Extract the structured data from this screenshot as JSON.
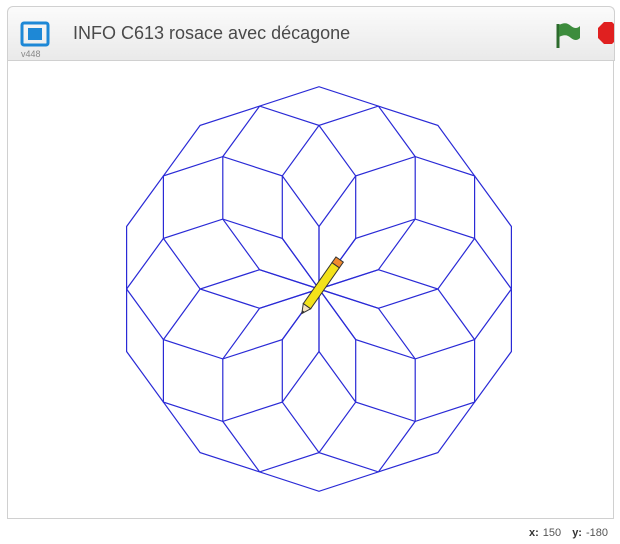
{
  "header": {
    "version": "v448",
    "title": "INFO C613 rosace avec décagone"
  },
  "coordinates": {
    "x_label": "x:",
    "x": 150,
    "y_label": "y:",
    "y": -180
  }
}
